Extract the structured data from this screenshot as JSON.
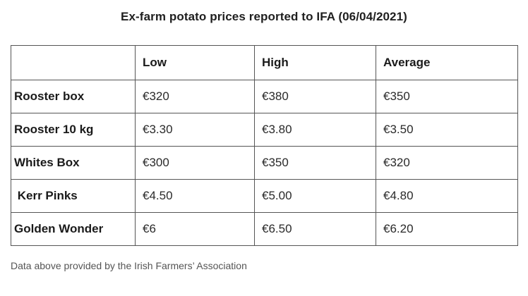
{
  "title": "Ex-farm potato prices reported to IFA (06/04/2021)",
  "table": {
    "headers": [
      "",
      "Low",
      "High",
      "Average"
    ],
    "rows": [
      {
        "label": "Rooster box",
        "low": "€320",
        "high": "€380",
        "average": "€350"
      },
      {
        "label": "Rooster 10 kg",
        "low": "€3.30",
        "high": "€3.80",
        "average": "€3.50"
      },
      {
        "label": "Whites Box",
        "low": "€300",
        "high": "€350",
        "average": "€320"
      },
      {
        "label": " Kerr Pinks",
        "low": "€4.50",
        "high": "€5.00",
        "average": "€4.80"
      },
      {
        "label": "Golden Wonder",
        "low": "€6",
        "high": "€6.50",
        "average": "€6.20"
      }
    ]
  },
  "source_note": "Data above provided by the Irish Farmers’ Association"
}
